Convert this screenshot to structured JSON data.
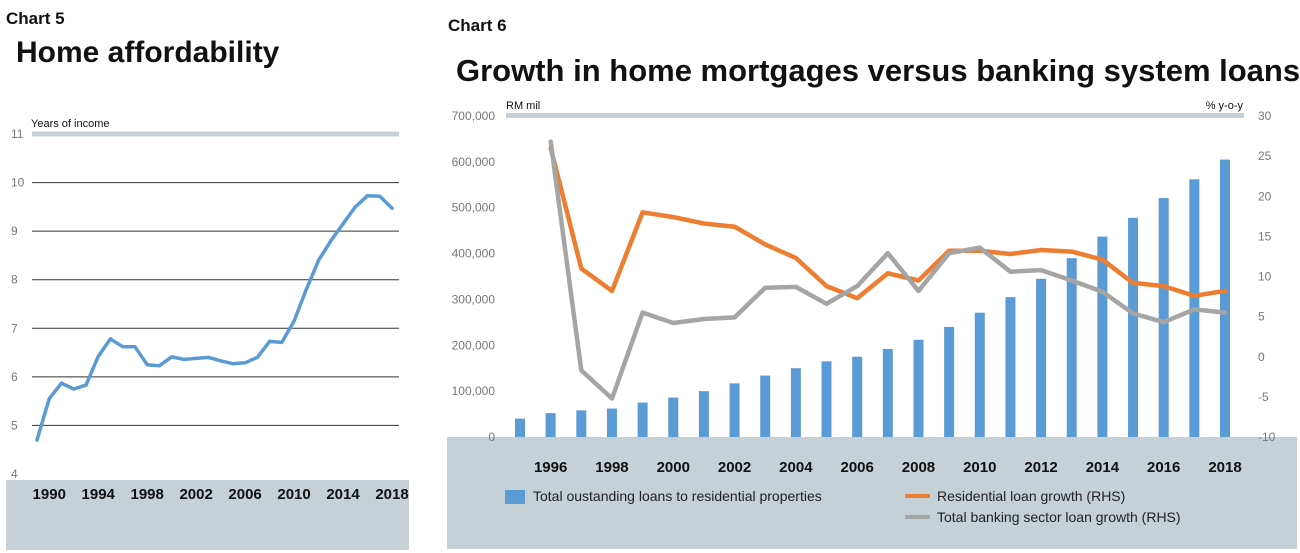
{
  "left": {
    "chart_no": "Chart 5",
    "title": "Home affordability",
    "chart_data": {
      "type": "line",
      "title": "Home affordability",
      "ylabel": "Years of income",
      "ylim": [
        4,
        11
      ],
      "yticks": [
        4,
        5,
        6,
        7,
        8,
        9,
        10,
        11
      ],
      "grid": true,
      "xtick_labels": [
        "1990",
        "1994",
        "1998",
        "2002",
        "2006",
        "2010",
        "2014",
        "2018"
      ],
      "x": [
        1989,
        1990,
        1991,
        1992,
        1993,
        1994,
        1995,
        1996,
        1997,
        1998,
        1999,
        2000,
        2001,
        2002,
        2003,
        2004,
        2005,
        2006,
        2007,
        2008,
        2009,
        2010,
        2011,
        2012,
        2013,
        2014,
        2015,
        2016,
        2017,
        2018
      ],
      "series": [
        {
          "values": [
            4.7,
            5.55,
            5.87,
            5.75,
            5.83,
            6.42,
            6.78,
            6.62,
            6.62,
            6.25,
            6.23,
            6.41,
            6.36,
            6.38,
            6.4,
            6.33,
            6.27,
            6.29,
            6.4,
            6.73,
            6.71,
            7.15,
            7.8,
            8.4,
            8.8,
            9.15,
            9.5,
            9.73,
            9.72,
            9.47
          ],
          "color": "#5b9bd5"
        }
      ]
    }
  },
  "right": {
    "chart_no": "Chart 6",
    "title": "Growth in home mortgages versus banking system loans",
    "chart_data": {
      "type": "bar",
      "title": "Growth in home mortgages versus banking system loans",
      "y_left_label": "RM mil",
      "y_right_label": "% y-o-y",
      "ylim_left": [
        0,
        700000
      ],
      "ylim_right": [
        -10,
        30
      ],
      "yticks_left": [
        "0",
        "100,000",
        "200,000",
        "300,000",
        "400,000",
        "500,000",
        "600,000",
        "700,000"
      ],
      "yticks_right": [
        "-10",
        "-5",
        "0",
        "5",
        "10",
        "15",
        "20",
        "25",
        "30"
      ],
      "grid": false,
      "legend_position": "bottom",
      "categories": [
        "1995",
        "1996",
        "1997",
        "1998",
        "1999",
        "2000",
        "2001",
        "2002",
        "2003",
        "2004",
        "2005",
        "2006",
        "2007",
        "2008",
        "2009",
        "2010",
        "2011",
        "2012",
        "2013",
        "2014",
        "2015",
        "2016",
        "2017",
        "2018"
      ],
      "xtick_labels": [
        "1996",
        "1998",
        "2000",
        "2002",
        "2004",
        "2006",
        "2008",
        "2010",
        "2012",
        "2014",
        "2016",
        "2018"
      ],
      "series": [
        {
          "name": "Total oustanding loans to residential properties",
          "type": "bar",
          "axis": "left",
          "color": "#5b9bd5",
          "values": [
            40000,
            52000,
            58000,
            62000,
            75000,
            86000,
            100000,
            117000,
            134000,
            150000,
            165000,
            175000,
            192000,
            212000,
            240000,
            271000,
            305000,
            345000,
            390000,
            437000,
            478000,
            521000,
            562000,
            605000
          ]
        },
        {
          "name": "Residential loan growth (RHS)",
          "type": "line",
          "axis": "right",
          "color": "#ed7d31",
          "values": [
            null,
            26,
            11,
            8.2,
            18,
            17.4,
            16.6,
            16.2,
            14,
            12.3,
            8.8,
            7.3,
            10.4,
            9.5,
            13.2,
            13.2,
            12.8,
            13.3,
            13.1,
            12.1,
            9.2,
            8.8,
            7.6,
            8.2
          ]
        },
        {
          "name": "Total banking sector loan growth (RHS)",
          "type": "line",
          "axis": "right",
          "color": "#a5a5a5",
          "values": [
            null,
            26.8,
            -1.7,
            -5.2,
            5.5,
            4.2,
            4.7,
            4.9,
            8.6,
            8.7,
            6.6,
            8.8,
            12.9,
            8.2,
            12.9,
            13.6,
            10.6,
            10.8,
            9.5,
            8.1,
            5.4,
            4.3,
            5.9,
            5.5
          ]
        }
      ]
    }
  }
}
